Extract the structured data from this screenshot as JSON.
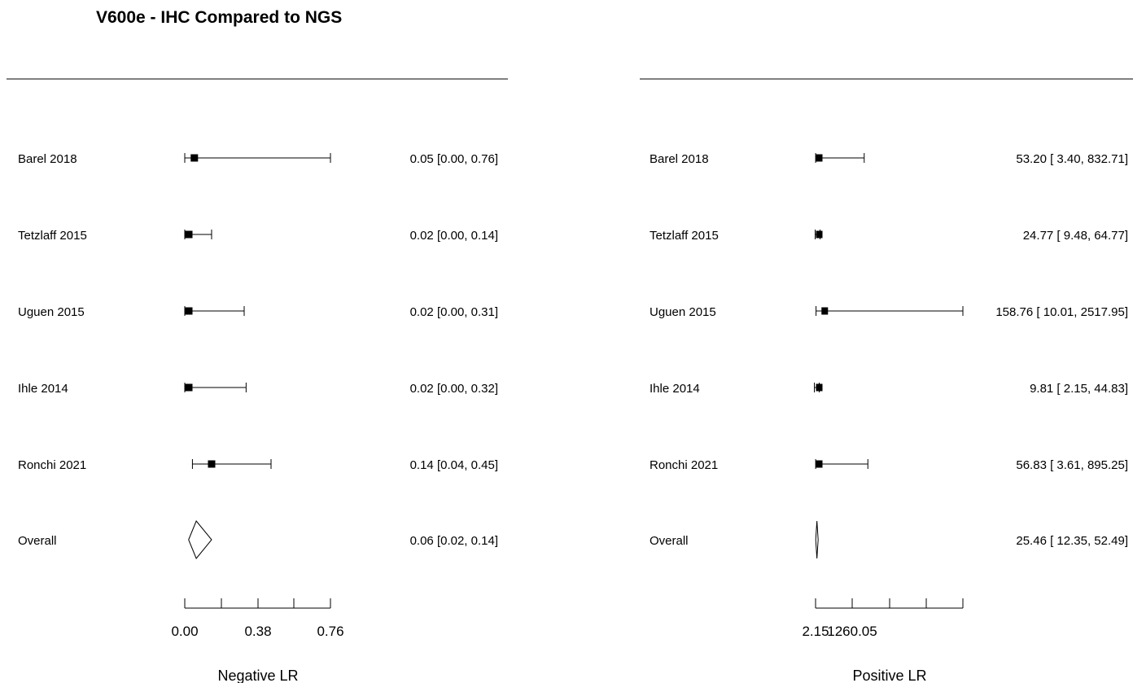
{
  "title": "V600e - IHC Compared to NGS",
  "chart_data": [
    {
      "type": "forest",
      "xlabel": "Negative LR",
      "xlim": [
        0.0,
        0.76
      ],
      "tick_labels": [
        "0.00",
        "0.38",
        "0.76"
      ],
      "rows": [
        {
          "label": "Barel 2018",
          "estimate": 0.05,
          "lower": 0.0,
          "upper": 0.76,
          "text": "0.05 [0.00, 0.76]"
        },
        {
          "label": "Tetzlaff 2015",
          "estimate": 0.02,
          "lower": 0.0,
          "upper": 0.14,
          "text": "0.02 [0.00, 0.14]"
        },
        {
          "label": "Uguen 2015",
          "estimate": 0.02,
          "lower": 0.0,
          "upper": 0.31,
          "text": "0.02 [0.00, 0.31]"
        },
        {
          "label": "Ihle 2014",
          "estimate": 0.02,
          "lower": 0.0,
          "upper": 0.32,
          "text": "0.02 [0.00, 0.32]"
        },
        {
          "label": "Ronchi 2021",
          "estimate": 0.14,
          "lower": 0.04,
          "upper": 0.45,
          "text": "0.14 [0.04, 0.45]"
        }
      ],
      "overall": {
        "label": "Overall",
        "estimate": 0.06,
        "lower": 0.02,
        "upper": 0.14,
        "text": "0.06 [0.02, 0.14]"
      }
    },
    {
      "type": "forest",
      "xlabel": "Positive LR",
      "xlim": [
        2.15,
        2517.95
      ],
      "tick_labels": [
        "2.15",
        "1260.05"
      ],
      "rows": [
        {
          "label": "Barel 2018",
          "estimate": 53.2,
          "lower": 3.4,
          "upper": 832.71,
          "text": "53.20 [   3.40,  832.71]"
        },
        {
          "label": "Tetzlaff 2015",
          "estimate": 24.77,
          "lower": 9.48,
          "upper": 64.77,
          "text": "24.77 [   9.48,   64.77]"
        },
        {
          "label": "Uguen 2015",
          "estimate": 158.76,
          "lower": 10.01,
          "upper": 2517.95,
          "text": "158.76 [  10.01, 2517.95]"
        },
        {
          "label": "Ihle 2014",
          "estimate": 9.81,
          "lower": 2.15,
          "upper": 44.83,
          "text": "9.81 [   2.15,   44.83]"
        },
        {
          "label": "Ronchi 2021",
          "estimate": 56.83,
          "lower": 3.61,
          "upper": 895.25,
          "text": "56.83 [   3.61,  895.25]"
        }
      ],
      "overall": {
        "label": "Overall",
        "estimate": 25.46,
        "lower": 12.35,
        "upper": 52.49,
        "text": "25.46 [  12.35,   52.49]"
      }
    }
  ]
}
